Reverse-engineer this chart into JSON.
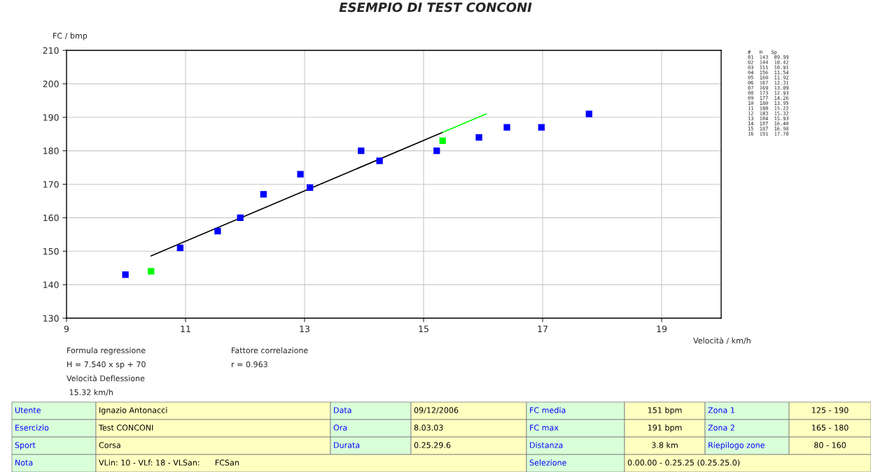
{
  "chart_data": {
    "type": "scatter",
    "title": "ESEMPIO DI TEST CONCONI",
    "xlabel": "Velocità / km/h",
    "ylabel": "FC / bmp",
    "series": [
      {
        "color": "#0000ff",
        "marker": "square",
        "x": [
          9.99,
          10.91,
          11.54,
          11.92,
          12.31,
          13.09,
          12.93,
          14.26,
          13.95,
          15.22,
          15.93,
          16.4,
          16.98,
          17.78
        ],
        "values": [
          143,
          151,
          156,
          160,
          167,
          169,
          173,
          177,
          180,
          180,
          184,
          187,
          187,
          191
        ]
      },
      {
        "color": "#00ff00",
        "marker": "square",
        "x": [
          10.42,
          15.32
        ],
        "values": [
          144,
          183
        ]
      },
      {
        "type": "line",
        "color": "#000000",
        "marker": "none",
        "x": [
          10.42,
          15.32
        ],
        "values": [
          148.6,
          185.5
        ]
      },
      {
        "type": "line",
        "color": "#00ff00",
        "marker": "none",
        "x": [
          15.32,
          16.05
        ],
        "values": [
          185.5,
          191
        ]
      }
    ],
    "xlim": [
      9,
      20
    ],
    "xticks": [
      9,
      11,
      13,
      15,
      17,
      19
    ],
    "ylim": [
      130,
      210
    ],
    "yticks": [
      130,
      140,
      150,
      160,
      170,
      180,
      190,
      200,
      210
    ],
    "grid": true,
    "legend": false,
    "annotations": [
      "Formula regressione",
      "H = 7.540 x sp + 70",
      "Velocità Deflessione",
      " 15.32 km/h",
      "Fattore correlazione",
      "r = 0.963",
      "#   H   Sp",
      "01  143  09.99",
      "02  144  10.42",
      "03  151  10.91",
      "04  156  11.54",
      "05  160  11.92",
      "06  167  12.31",
      "07  169  13.09",
      "08  173  12.93",
      "09  177  14.26",
      "10  180  13.95",
      "11  180  15.22",
      "12  183  15.32",
      "13  184  15.93",
      "14  187  16.40",
      "15  187  16.98",
      "16  191  17.78",
      "Utente",
      "Ignazio Antonacci",
      "Data",
      "09/12/2006",
      "FC media",
      "151 bpm",
      "Zona 1",
      "125 - 190",
      "Esercizio",
      "Test CONCONI",
      "Ora",
      "8.03.03",
      "FC max",
      "191 bpm",
      "Zona 2",
      "165 - 180",
      "Sport",
      "Corsa",
      "Durata",
      "0.25.29.6",
      "Distanza",
      "3.8 km",
      "Riepilogo zone",
      "80 - 160",
      "Nota",
      "VLin: 10 - VLf: 18 - VLSan:      FCSan",
      "Selezione",
      "0.00.00 - 0.25.25 (0.25.25.0)"
    ]
  }
}
